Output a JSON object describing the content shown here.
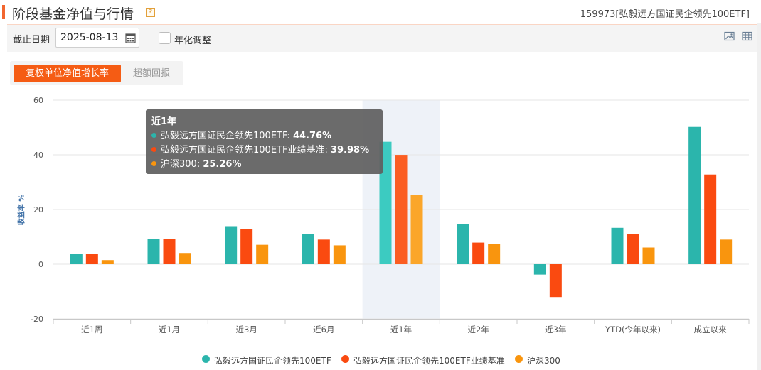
{
  "header": {
    "title": "阶段基金净值与行情",
    "help_icon": "?",
    "fund_name": "159973[弘毅远方国证民企领先100ETF]"
  },
  "toolbar": {
    "date_label": "截止日期",
    "date_value": "2025-08-13",
    "annualize_label": "年化调整",
    "annualize_checked": false,
    "icons": [
      "chart-view-icon",
      "table-view-icon"
    ]
  },
  "tabs": [
    {
      "label": "复权单位净值增长率",
      "active": true
    },
    {
      "label": "超额回报",
      "active": false
    }
  ],
  "chart_data": {
    "type": "bar",
    "ylabel": "收益率 %",
    "ylim": [
      -20,
      60
    ],
    "yticks": [
      -20,
      0,
      20,
      40,
      60
    ],
    "grid": true,
    "legend_position": "bottom",
    "categories": [
      "近1周",
      "近1月",
      "近3月",
      "近6月",
      "近1年",
      "近2年",
      "近3年",
      "YTD(今年以来)",
      "成立以来"
    ],
    "series": [
      {
        "name": "弘毅远方国证民企领先100ETF",
        "color": "#2bb5ac",
        "values": [
          3.8,
          9.2,
          13.9,
          11.0,
          44.76,
          14.6,
          -3.8,
          13.3,
          50.2
        ]
      },
      {
        "name": "弘毅远方国证民企领先100ETF业绩基准",
        "color": "#fa4a10",
        "values": [
          3.8,
          9.2,
          12.8,
          9.0,
          39.98,
          7.9,
          -12.0,
          11.0,
          32.8
        ]
      },
      {
        "name": "沪深300",
        "color": "#f9950e",
        "values": [
          1.5,
          4.1,
          7.1,
          6.9,
          25.26,
          7.4,
          null,
          6.1,
          9.0
        ]
      }
    ],
    "highlight_index": 4
  },
  "tooltip": {
    "title": "近1年",
    "rows": [
      {
        "label": "弘毅远方国证民企领先100ETF: ",
        "value": "44.76%",
        "color": "#2bb5ac"
      },
      {
        "label": "弘毅远方国证民企领先100ETF业绩基准: ",
        "value": "39.98%",
        "color": "#fa4a10"
      },
      {
        "label": "沪深300: ",
        "value": "25.26%",
        "color": "#f9950e"
      }
    ]
  }
}
